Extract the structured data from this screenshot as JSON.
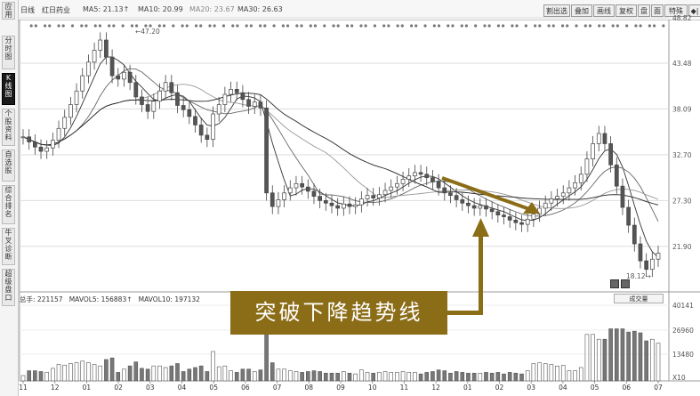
{
  "sidebar": {
    "tabs": [
      {
        "label": "应用",
        "active": false
      },
      {
        "label": "分时图",
        "active": false
      },
      {
        "label": "K线图",
        "active": true
      },
      {
        "label": "个股资料",
        "active": false
      },
      {
        "label": "自选股",
        "active": false
      },
      {
        "label": "综合排名",
        "active": false
      },
      {
        "label": "牛叉诊断",
        "active": false
      },
      {
        "label": "超级盘口",
        "active": false
      }
    ]
  },
  "header": {
    "period": "日线",
    "stock_name": "红日药业",
    "ma5": "MA5: 21.13↑",
    "ma10": "MA10: 20.99",
    "ma20": "MA20: 23.67",
    "ma30": "MA30: 26.63",
    "buttons": [
      "割出选",
      "叠加",
      "画线",
      "复权",
      "盘",
      "面",
      "特殊",
      "◆|",
      "▼"
    ]
  },
  "price_axis": {
    "ticks": [
      "48.82",
      "43.48",
      "38.09",
      "32.70",
      "27.30",
      "21.90"
    ],
    "peak_label": "47.20",
    "low_label": "18.12"
  },
  "volume_panel": {
    "vol": "总手: 221157",
    "mavol5": "MAVOL5: 156883↑",
    "mavol10": "MAVOL10: 197132",
    "ticks": [
      "40141",
      "26960",
      "13480",
      "X10"
    ],
    "type_select": "成交量"
  },
  "x_axis": {
    "labels": [
      "11",
      "12",
      "01",
      "02",
      "03",
      "04",
      "05",
      "06",
      "07",
      "08",
      "09",
      "10",
      "11",
      "12",
      "01",
      "02",
      "03",
      "04",
      "05",
      "06",
      "07"
    ]
  },
  "annotation": {
    "text": "突破下降趋势线"
  },
  "chart_data": {
    "type": "candlestick",
    "y_range": [
      18.12,
      48.82
    ],
    "close": [
      34.8,
      34.2,
      33.6,
      33.1,
      33.5,
      34.4,
      35.8,
      37.1,
      38.6,
      40.2,
      42.0,
      43.6,
      45.0,
      46.2,
      44.2,
      42.0,
      41.6,
      42.4,
      41.2,
      39.5,
      38.6,
      37.8,
      39.0,
      40.2,
      41.2,
      40.0,
      38.5,
      38.0,
      37.2,
      36.2,
      35.0,
      34.5,
      37.5,
      38.6,
      39.8,
      40.4,
      40.0,
      39.2,
      38.4,
      38.9,
      38.2,
      28.2,
      26.6,
      27.4,
      28.2,
      28.8,
      29.3,
      28.9,
      28.4,
      27.8,
      27.3,
      27.0,
      26.7,
      26.4,
      26.9,
      26.6,
      26.8,
      27.5,
      27.9,
      27.6,
      28.0,
      28.5,
      28.9,
      29.3,
      29.8,
      30.2,
      30.6,
      30.4,
      30.0,
      29.5,
      28.8,
      28.2,
      27.9,
      27.4,
      27.0,
      26.7,
      26.4,
      26.7,
      26.3,
      26.0,
      25.6,
      25.4,
      25.0,
      24.7,
      24.5,
      25.1,
      25.7,
      26.4,
      27.0,
      27.5,
      27.8,
      28.2,
      28.8,
      29.4,
      30.4,
      32.2,
      34.0,
      35.2,
      34.0,
      31.5,
      29.0,
      26.5,
      24.4,
      22.2,
      20.2,
      19.2,
      20.4,
      21.1
    ]
  }
}
